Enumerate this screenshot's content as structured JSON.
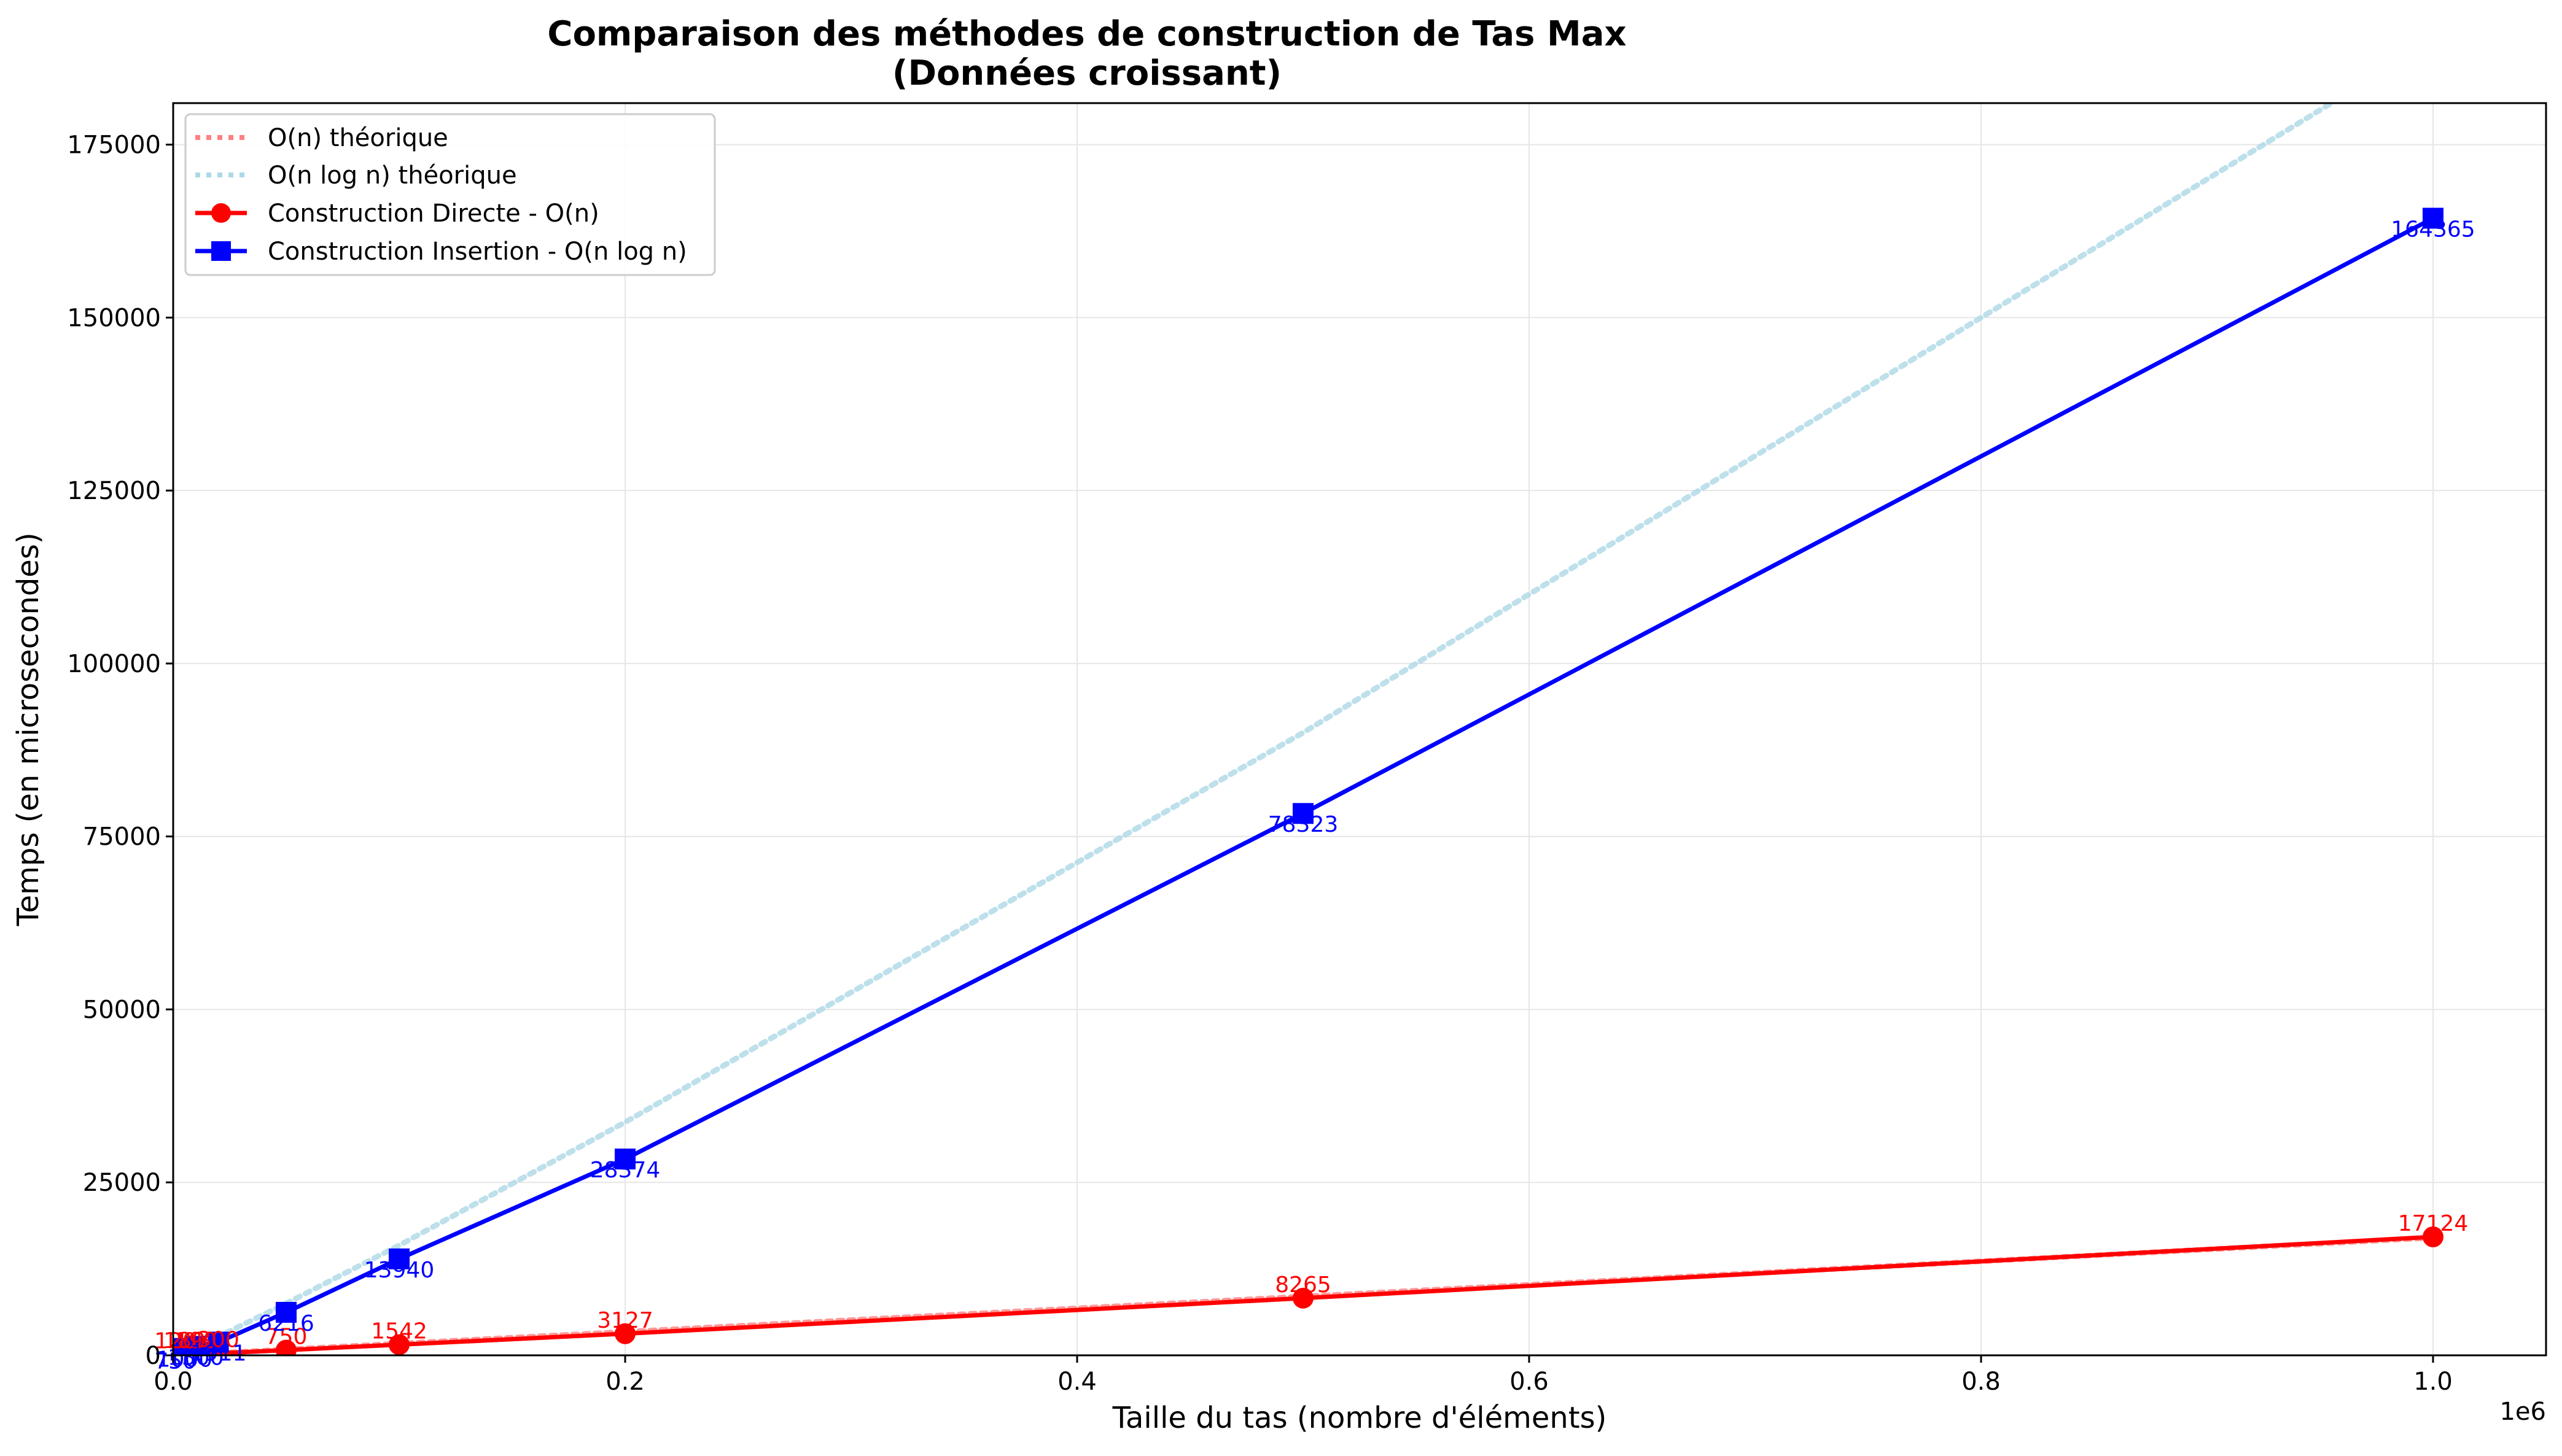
{
  "colors": {
    "directe": "#ff0000",
    "insertion": "#0000ff",
    "theo_n": "#ff8080",
    "theo_nlogn": "#add8e6",
    "grid": "#e6e6e6",
    "axis": "#000000"
  },
  "chart_data": {
    "type": "line",
    "title_line1": "Comparaison des méthodes de construction de Tas Max",
    "title_line2": "(Données croissant)",
    "xlabel": "Taille du tas (nombre d'éléments)",
    "ylabel": "Temps (en microsecondes)",
    "x_offset_label": "1e6",
    "xlim": [
      0,
      1050000
    ],
    "ylim": [
      0,
      181000
    ],
    "x_ticks": [
      0,
      200000,
      400000,
      600000,
      800000,
      1000000
    ],
    "x_tick_labels": [
      "0.0",
      "0.2",
      "0.4",
      "0.6",
      "0.8",
      "1.0"
    ],
    "y_ticks": [
      0,
      25000,
      50000,
      75000,
      100000,
      125000,
      150000,
      175000
    ],
    "y_tick_labels": [
      "0",
      "25000",
      "50000",
      "75000",
      "100000",
      "125000",
      "150000",
      "175000"
    ],
    "grid": true,
    "legend_position": "top-left",
    "legend": [
      {
        "label": "O(n) théorique",
        "style": "dotted",
        "color_key": "theo_n"
      },
      {
        "label": "O(n log n) théorique",
        "style": "dotted",
        "color_key": "theo_nlogn"
      },
      {
        "label": "Construction Directe - O(n)",
        "style": "solid-circle",
        "color_key": "directe"
      },
      {
        "label": "Construction Insertion - O(n log n)",
        "style": "solid-square",
        "color_key": "insertion"
      }
    ],
    "x": [
      1000,
      5000,
      10000,
      20000,
      50000,
      100000,
      200000,
      500000,
      1000000
    ],
    "series": [
      {
        "name": "O(n) théorique",
        "theoretical": "n",
        "x": [
          1000,
          5000,
          10000,
          20000,
          50000,
          100000,
          200000,
          500000,
          1000000
        ],
        "values": [
          17,
          85,
          170,
          340,
          850,
          1700,
          3400,
          8500,
          17000
        ]
      },
      {
        "name": "O(n log n) théorique",
        "theoretical": "nlogn",
        "x": [
          1000,
          5000,
          10000,
          20000,
          50000,
          100000,
          200000,
          500000,
          1000000,
          1050000
        ],
        "values": [
          94,
          580,
          1260,
          2700,
          7500,
          15900,
          33700,
          90000,
          190000,
          200400
        ]
      },
      {
        "name": "Construction Directe - O(n)",
        "marker": "circle",
        "values": [
          120,
          180,
          190,
          300,
          750,
          1542,
          3127,
          8265,
          17124
        ],
        "labels": [
          "120",
          "180",
          "190",
          "300",
          "750",
          "1542",
          "3127",
          "8265",
          "17124"
        ]
      },
      {
        "name": "Construction Insertion - O(n log n)",
        "marker": "square",
        "values": [
          750,
          1000,
          1300,
          1911,
          6216,
          13940,
          28374,
          78323,
          164365
        ],
        "labels": [
          "750",
          "1000",
          "1300",
          "1911",
          "6216",
          "13940",
          "28374",
          "78323",
          "164365"
        ]
      }
    ]
  }
}
